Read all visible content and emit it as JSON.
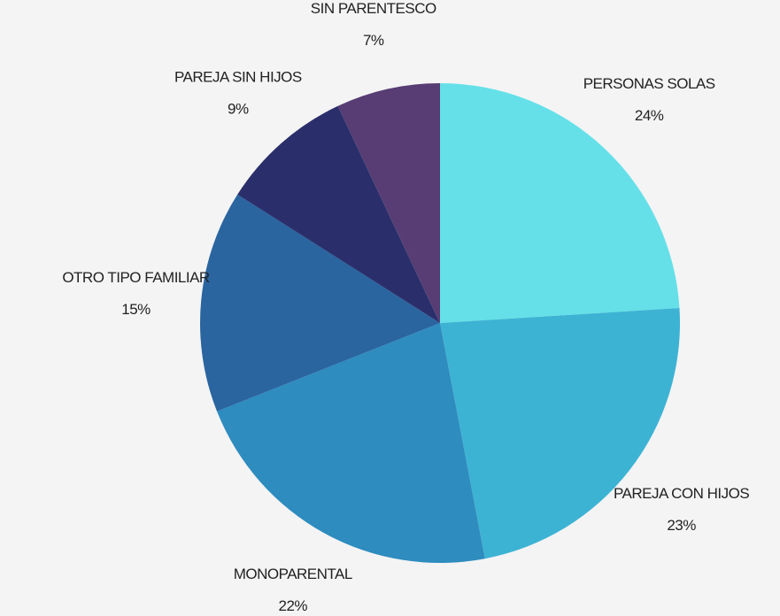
{
  "chart_data": {
    "type": "pie",
    "categories": [
      "PERSONAS SOLAS",
      "PAREJA CON HIJOS",
      "MONOPARENTAL",
      "OTRO TIPO FAMILIAR",
      "PAREJA SIN HIJOS",
      "SIN PARENTESCO"
    ],
    "values": [
      24,
      23,
      22,
      15,
      9,
      7
    ],
    "value_labels": [
      "24%",
      "23%",
      "22%",
      "15%",
      "9%",
      "7%"
    ],
    "colors": [
      "#65e0e8",
      "#3db3d4",
      "#2e8cbf",
      "#2a65a0",
      "#2a2f6b",
      "#573d73"
    ]
  }
}
